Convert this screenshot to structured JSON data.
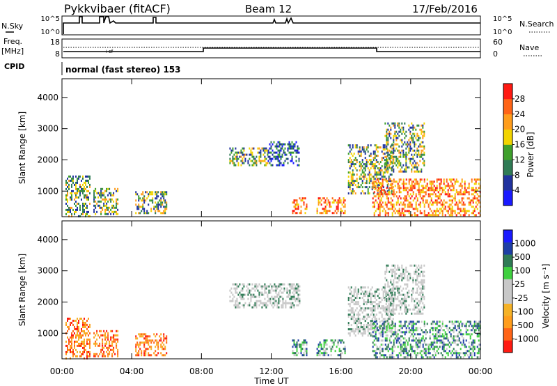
{
  "header": {
    "radar_title": "Pykkvibaer (fitACF)",
    "beam": "Beam 12",
    "date": "17/Feb/2016"
  },
  "panels": {
    "nsky": {
      "label": "N.Sky",
      "left_ticks": [
        "10^5",
        "10^0"
      ],
      "right_ticks": [
        "10^5",
        "10^0"
      ],
      "right_label": "N.Search"
    },
    "freq": {
      "label_line1": "Freq.",
      "label_line2": "[MHz]",
      "left_ticks": [
        "18",
        "8"
      ],
      "right_ticks": [
        "60",
        "0"
      ],
      "right_label": "Nave",
      "marker": "+cf"
    },
    "cpid": {
      "label": "CPID",
      "text": "normal (fast stereo) 153"
    }
  },
  "colorbars": {
    "power": {
      "label": "Power [dB]",
      "colors": [
        "#1a1aff",
        "#20329e",
        "#2f7b55",
        "#3fa02c",
        "#f2d400",
        "#ff9d1c",
        "#ff6417",
        "#ff1a12"
      ],
      "ticks": [
        "4",
        "8",
        "12",
        "16",
        "20",
        "24",
        "28"
      ]
    },
    "velocity": {
      "label": "Velocity [m s⁻¹]",
      "colors": [
        "#ff1a12",
        "#ff6417",
        "#ff9d1c",
        "#f5b227",
        "#c8c8c8",
        "#c8c8c8",
        "#3fd03f",
        "#2f7b55",
        "#1e3fa5",
        "#1a1aff"
      ],
      "ticks": [
        "-1000",
        "-500",
        "-100",
        "-25",
        "25",
        "100",
        "500",
        "1000"
      ]
    }
  },
  "chart_data": [
    {
      "type": "heatmap",
      "title": "",
      "xlabel": "",
      "ylabel": "Slant Range [km]",
      "quantity": "Power",
      "unit": "dB",
      "xlim": [
        0,
        24
      ],
      "ylim": [
        180,
        4600
      ],
      "yticks": [
        1000,
        2000,
        3000,
        4000
      ],
      "regions": [
        {
          "t0": 0.2,
          "t1": 1.6,
          "r0": 200,
          "r1": 1500,
          "level": "mid"
        },
        {
          "t0": 1.8,
          "t1": 3.2,
          "r0": 250,
          "r1": 1100,
          "level": "mid"
        },
        {
          "t0": 4.2,
          "t1": 6.0,
          "r0": 300,
          "r1": 1000,
          "level": "mid"
        },
        {
          "t0": 9.6,
          "t1": 11.8,
          "r0": 1800,
          "r1": 2400,
          "level": "mid"
        },
        {
          "t0": 11.8,
          "t1": 13.6,
          "r0": 1800,
          "r1": 2600,
          "level": "low"
        },
        {
          "t0": 13.2,
          "t1": 14.0,
          "r0": 300,
          "r1": 800,
          "level": "high"
        },
        {
          "t0": 14.6,
          "t1": 16.2,
          "r0": 300,
          "r1": 800,
          "level": "high"
        },
        {
          "t0": 16.4,
          "t1": 19.0,
          "r0": 900,
          "r1": 2500,
          "level": "mid"
        },
        {
          "t0": 17.8,
          "t1": 24.0,
          "r0": 200,
          "r1": 1400,
          "level": "high"
        },
        {
          "t0": 18.5,
          "t1": 20.8,
          "r0": 1600,
          "r1": 3200,
          "level": "mid"
        }
      ]
    },
    {
      "type": "heatmap",
      "title": "",
      "xlabel": "Time UT",
      "ylabel": "Slant Range [km]",
      "quantity": "Velocity",
      "unit": "m s-1",
      "xlim": [
        0,
        24
      ],
      "ylim": [
        180,
        4600
      ],
      "yticks": [
        1000,
        2000,
        3000,
        4000
      ],
      "xticks": [
        "00:00",
        "04:00",
        "08:00",
        "12:00",
        "16:00",
        "20:00",
        "00:00"
      ],
      "regions": [
        {
          "t0": 0.2,
          "t1": 1.6,
          "r0": 200,
          "r1": 1500,
          "level": "neg"
        },
        {
          "t0": 1.8,
          "t1": 3.2,
          "r0": 250,
          "r1": 1100,
          "level": "neg"
        },
        {
          "t0": 4.2,
          "t1": 6.0,
          "r0": 300,
          "r1": 1000,
          "level": "neg"
        },
        {
          "t0": 9.6,
          "t1": 13.6,
          "r0": 1800,
          "r1": 2600,
          "level": "zero"
        },
        {
          "t0": 13.2,
          "t1": 14.0,
          "r0": 300,
          "r1": 800,
          "level": "pos"
        },
        {
          "t0": 14.6,
          "t1": 16.2,
          "r0": 300,
          "r1": 800,
          "level": "pos"
        },
        {
          "t0": 16.4,
          "t1": 19.0,
          "r0": 900,
          "r1": 2500,
          "level": "zero"
        },
        {
          "t0": 17.8,
          "t1": 24.0,
          "r0": 200,
          "r1": 1400,
          "level": "pos"
        },
        {
          "t0": 18.5,
          "t1": 20.8,
          "r0": 1600,
          "r1": 3200,
          "level": "zero"
        }
      ]
    }
  ]
}
